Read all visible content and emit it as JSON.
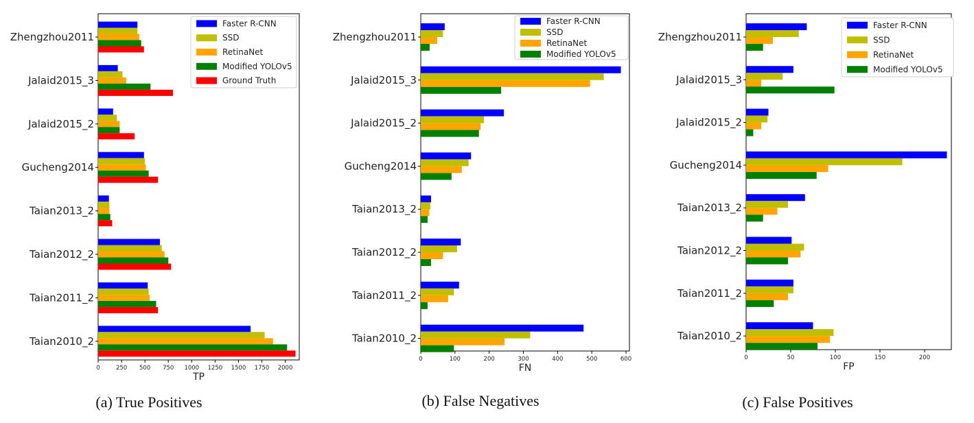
{
  "chart_data": [
    {
      "type": "bar",
      "orientation": "horizontal",
      "xlabel": "TP",
      "xlim": [
        0,
        2150
      ],
      "ticks": [
        0,
        250,
        500,
        750,
        1000,
        1250,
        1500,
        1750,
        2000
      ],
      "legend_position": "top-right",
      "categories": [
        "Zhengzhou2011",
        "Jalaid2015_3",
        "Jalaid2015_2",
        "Gucheng2014",
        "Taian2013_2",
        "Taian2012_2",
        "Taian2011_2",
        "Taian2010_2"
      ],
      "series": [
        {
          "name": "Faster R-CNN",
          "color": "#0000ff",
          "values": [
            420,
            210,
            160,
            490,
            115,
            660,
            530,
            1630
          ]
        },
        {
          "name": "SSD",
          "color": "#bfbf00",
          "values": [
            420,
            260,
            200,
            500,
            120,
            680,
            540,
            1780
          ]
        },
        {
          "name": "RetinaNet",
          "color": "#ffa500",
          "values": [
            440,
            300,
            230,
            510,
            120,
            710,
            550,
            1870
          ]
        },
        {
          "name": "Modified YOLOv5",
          "color": "#008000",
          "values": [
            460,
            560,
            230,
            540,
            130,
            750,
            620,
            2020
          ]
        },
        {
          "name": "Ground Truth",
          "color": "#ff0000",
          "values": [
            490,
            800,
            390,
            640,
            150,
            780,
            640,
            2110
          ]
        }
      ],
      "caption": "(a) True Positives"
    },
    {
      "type": "bar",
      "orientation": "horizontal",
      "xlabel": "FN",
      "xlim": [
        0,
        610
      ],
      "ticks": [
        0,
        100,
        200,
        300,
        400,
        500,
        600
      ],
      "legend_position": "top-right",
      "categories": [
        "Zhengzhou2011",
        "Jalaid2015_3",
        "Jalaid2015_2",
        "Gucheng2014",
        "Taian2013_2",
        "Taian2012_2",
        "Taian2011_2",
        "Taian2010_2"
      ],
      "series": [
        {
          "name": "Faster R-CNN",
          "color": "#0000ff",
          "values": [
            70,
            585,
            243,
            147,
            30,
            117,
            112,
            476
          ]
        },
        {
          "name": "SSD",
          "color": "#bfbf00",
          "values": [
            65,
            535,
            185,
            140,
            28,
            106,
            97,
            320
          ]
        },
        {
          "name": "RetinaNet",
          "color": "#ffa500",
          "values": [
            48,
            495,
            175,
            120,
            25,
            65,
            80,
            245
          ]
        },
        {
          "name": "Modified YOLOv5",
          "color": "#008000",
          "values": [
            26,
            235,
            170,
            90,
            20,
            30,
            20,
            97
          ]
        }
      ],
      "caption": "(b) False Negatives"
    },
    {
      "type": "bar",
      "orientation": "horizontal",
      "xlabel": "FP",
      "xlim": [
        0,
        230
      ],
      "ticks": [
        0,
        50,
        100,
        150,
        200
      ],
      "legend_position": "top-right",
      "categories": [
        "Zhengzhou2011",
        "Jalaid2015_3",
        "Jalaid2015_2",
        "Gucheng2014",
        "Taian2013_2",
        "Taian2012_2",
        "Taian2011_2",
        "Taian2010_2"
      ],
      "series": [
        {
          "name": "Faster R-CNN",
          "color": "#0000ff",
          "values": [
            68,
            53,
            25,
            225,
            66,
            51,
            53,
            75
          ]
        },
        {
          "name": "SSD",
          "color": "#bfbf00",
          "values": [
            59,
            41,
            24,
            175,
            47,
            65,
            53,
            98
          ]
        },
        {
          "name": "RetinaNet",
          "color": "#ffa500",
          "values": [
            30,
            17,
            17,
            92,
            35,
            61,
            47,
            94
          ]
        },
        {
          "name": "Modified YOLOv5",
          "color": "#008000",
          "values": [
            19,
            99,
            8,
            79,
            19,
            47,
            31,
            80
          ]
        }
      ],
      "caption": "(c) False Positives"
    }
  ]
}
